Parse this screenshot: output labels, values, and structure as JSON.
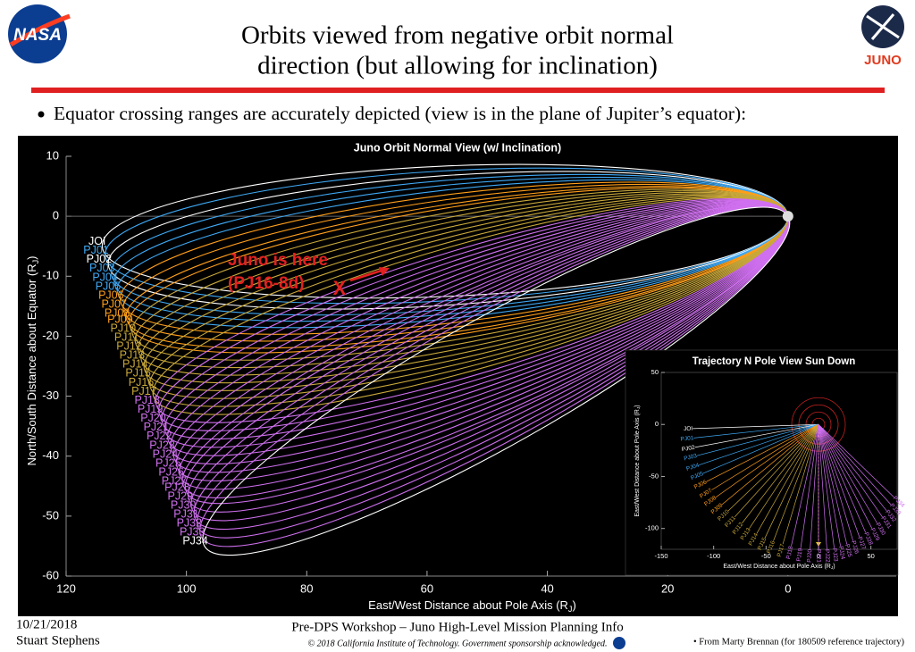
{
  "slide": {
    "logo_left": "NASA",
    "logo_right": "JUNO",
    "title_lines": [
      "Orbits viewed from negative orbit normal",
      "direction (but allowing for inclination)"
    ],
    "bullet": "Equator crossing ranges are accurately depicted (view is in the plane of Jupiter’s equator):",
    "date": "10/21/2018",
    "author": "Stuart Stephens",
    "footer": "Pre-DPS Workshop – Juno High-Level Mission Planning Info",
    "copyright": "© 2018 California Institute of Technology. Government sponsorship acknowledged.",
    "source": "• From Marty Brennan (for 180509 reference trajectory)",
    "annotation_lines": [
      "Juno is here",
      "(PJ16-8d)"
    ],
    "marker": "X"
  },
  "chart_data": [
    {
      "type": "orbit",
      "title": "Juno Orbit Normal View (w/ Inclination)",
      "xlabel": [
        "East/West Distance about Pole Axis (R",
        "J",
        ")"
      ],
      "ylabel": [
        "North/South Distance about Equator (R",
        "J",
        ")"
      ],
      "xlim": [
        120,
        -18
      ],
      "ylim": [
        -60,
        10
      ],
      "xticks": [
        120,
        100,
        80,
        60,
        40,
        20,
        0
      ],
      "yticks": [
        10,
        0,
        -10,
        -20,
        -30,
        -40,
        -50,
        -60
      ],
      "series": [
        {
          "name": "JOI",
          "color": "#ffffff",
          "x": 114,
          "y": -5
        },
        {
          "name": "PJ01",
          "color": "#3fa9f5",
          "x": 113.5,
          "y": -6.5
        },
        {
          "name": "PJ02",
          "color": "#ffffff",
          "x": 113,
          "y": -8
        },
        {
          "name": "PJ03",
          "color": "#3fa9f5",
          "x": 112.5,
          "y": -9.5
        },
        {
          "name": "PJ04",
          "color": "#3fa9f5",
          "x": 112,
          "y": -11
        },
        {
          "name": "PJ05",
          "color": "#3fa9f5",
          "x": 111.5,
          "y": -12.5
        },
        {
          "name": "PJ06",
          "color": "#ff9f1a",
          "x": 111,
          "y": -14
        },
        {
          "name": "PJ07",
          "color": "#ff9f1a",
          "x": 110.5,
          "y": -15.5
        },
        {
          "name": "PJ08",
          "color": "#ff9f1a",
          "x": 110,
          "y": -17
        },
        {
          "name": "PJ09",
          "color": "#ff9f1a",
          "x": 109.5,
          "y": -18
        },
        {
          "name": "PJ10",
          "color": "#c9a83a",
          "x": 109,
          "y": -19.5
        },
        {
          "name": "PJ11",
          "color": "#c9a83a",
          "x": 108.5,
          "y": -21
        },
        {
          "name": "PJ12",
          "color": "#c9a83a",
          "x": 108,
          "y": -22.5
        },
        {
          "name": "PJ13",
          "color": "#c9a83a",
          "x": 107.5,
          "y": -24
        },
        {
          "name": "PJ14",
          "color": "#c9a83a",
          "x": 107,
          "y": -25.5
        },
        {
          "name": "PJ15",
          "color": "#c9a83a",
          "x": 106.5,
          "y": -27
        },
        {
          "name": "PJ16",
          "color": "#c9a83a",
          "x": 106,
          "y": -28.5
        },
        {
          "name": "PJ17",
          "color": "#c9a83a",
          "x": 105.5,
          "y": -30
        },
        {
          "name": "PJ18",
          "color": "#d070f0",
          "x": 105,
          "y": -31.5
        },
        {
          "name": "PJ19",
          "color": "#d070f0",
          "x": 104.5,
          "y": -33
        },
        {
          "name": "PJ20",
          "color": "#d070f0",
          "x": 104,
          "y": -34.5
        },
        {
          "name": "PJ21",
          "color": "#d070f0",
          "x": 103.5,
          "y": -36
        },
        {
          "name": "PJ22",
          "color": "#d070f0",
          "x": 103,
          "y": -37.5
        },
        {
          "name": "PJ23",
          "color": "#d070f0",
          "x": 102.5,
          "y": -39
        },
        {
          "name": "PJ24",
          "color": "#d070f0",
          "x": 102,
          "y": -40.5
        },
        {
          "name": "PJ25",
          "color": "#d070f0",
          "x": 101.5,
          "y": -42
        },
        {
          "name": "PJ26",
          "color": "#d070f0",
          "x": 101,
          "y": -43.5
        },
        {
          "name": "PJ27",
          "color": "#d070f0",
          "x": 100.5,
          "y": -45
        },
        {
          "name": "PJ28",
          "color": "#d070f0",
          "x": 100,
          "y": -46
        },
        {
          "name": "PJ29",
          "color": "#d070f0",
          "x": 99.5,
          "y": -47.5
        },
        {
          "name": "PJ30",
          "color": "#d070f0",
          "x": 99,
          "y": -49
        },
        {
          "name": "PJ31",
          "color": "#d070f0",
          "x": 98.5,
          "y": -50.5
        },
        {
          "name": "PJ32",
          "color": "#d070f0",
          "x": 98,
          "y": -52
        },
        {
          "name": "PJ33",
          "color": "#d070f0",
          "x": 97.5,
          "y": -53.5
        },
        {
          "name": "PJ34",
          "color": "#ffffff",
          "x": 97,
          "y": -55
        }
      ]
    },
    {
      "type": "pole-view",
      "title": "Trajectory N Pole View Sun Down",
      "xlabel": [
        "East/West Distance about Pole Axis (R",
        "J",
        ")"
      ],
      "ylabel": [
        "East/West Distance about Pole Axis (R",
        "J",
        ")"
      ],
      "xlim": [
        -150,
        75
      ],
      "ylim": [
        -120,
        50
      ],
      "xticks": [
        -150,
        -100,
        -50,
        0,
        50
      ],
      "yticks": [
        -100,
        -50,
        0,
        50
      ],
      "series": [
        {
          "name": "JOI",
          "color": "#ffffff",
          "x": -120,
          "y": -4
        },
        {
          "name": "PJ01",
          "color": "#3fa9f5",
          "x": -119,
          "y": -13
        },
        {
          "name": "PJ02",
          "color": "#ffffff",
          "x": -118,
          "y": -22
        },
        {
          "name": "PJ03",
          "color": "#3fa9f5",
          "x": -116,
          "y": -30
        },
        {
          "name": "PJ04",
          "color": "#3fa9f5",
          "x": -114,
          "y": -39
        },
        {
          "name": "PJ05",
          "color": "#3fa9f5",
          "x": -110,
          "y": -47
        },
        {
          "name": "PJ06",
          "color": "#ff9f1a",
          "x": -107,
          "y": -55
        },
        {
          "name": "PJ07",
          "color": "#ff9f1a",
          "x": -102,
          "y": -63
        },
        {
          "name": "PJ08",
          "color": "#ff9f1a",
          "x": -98,
          "y": -70
        },
        {
          "name": "PJ09",
          "color": "#ff9f1a",
          "x": -92,
          "y": -77
        },
        {
          "name": "PJ10",
          "color": "#c9a83a",
          "x": -86,
          "y": -83
        },
        {
          "name": "PJ11",
          "color": "#c9a83a",
          "x": -80,
          "y": -89
        },
        {
          "name": "PJ12",
          "color": "#c9a83a",
          "x": -73,
          "y": -95
        },
        {
          "name": "PJ13",
          "color": "#c9a83a",
          "x": -66,
          "y": -100
        },
        {
          "name": "PJ14",
          "color": "#c9a83a",
          "x": -59,
          "y": -105
        },
        {
          "name": "PJ15",
          "color": "#c9a83a",
          "x": -51,
          "y": -109
        },
        {
          "name": "PJ16",
          "color": "#c9a83a",
          "x": -43,
          "y": -112
        },
        {
          "name": "PJ17",
          "color": "#c9a83a",
          "x": -34,
          "y": -115
        },
        {
          "name": "PJ18",
          "color": "#d070f0",
          "x": -26,
          "y": -117
        },
        {
          "name": "PJ19",
          "color": "#d070f0",
          "x": -17,
          "y": -119
        },
        {
          "name": "PJ20",
          "color": "#d070f0",
          "x": -8,
          "y": -120
        },
        {
          "name": "PJ21",
          "color": "#d070f0",
          "x": 0,
          "y": -120
        },
        {
          "name": "PJ22",
          "color": "#d070f0",
          "x": 8,
          "y": -120
        },
        {
          "name": "PJ23",
          "color": "#d070f0",
          "x": 15,
          "y": -119
        },
        {
          "name": "PJ24",
          "color": "#d070f0",
          "x": 21,
          "y": -117
        },
        {
          "name": "PJ25",
          "color": "#d070f0",
          "x": 27,
          "y": -115
        },
        {
          "name": "PJ26",
          "color": "#d070f0",
          "x": 33,
          "y": -112
        },
        {
          "name": "PJ27",
          "color": "#d070f0",
          "x": 39,
          "y": -108
        },
        {
          "name": "PJ28",
          "color": "#d070f0",
          "x": 45,
          "y": -104
        },
        {
          "name": "PJ29",
          "color": "#d070f0",
          "x": 51,
          "y": -100
        },
        {
          "name": "PJ30",
          "color": "#d070f0",
          "x": 56,
          "y": -95
        },
        {
          "name": "PJ31",
          "color": "#d070f0",
          "x": 61,
          "y": -89
        },
        {
          "name": "PJ32",
          "color": "#d070f0",
          "x": 65,
          "y": -83
        },
        {
          "name": "PJ33",
          "color": "#d070f0",
          "x": 69,
          "y": -77
        },
        {
          "name": "PJ34",
          "color": "#d070f0",
          "x": 72,
          "y": -70
        }
      ]
    }
  ]
}
